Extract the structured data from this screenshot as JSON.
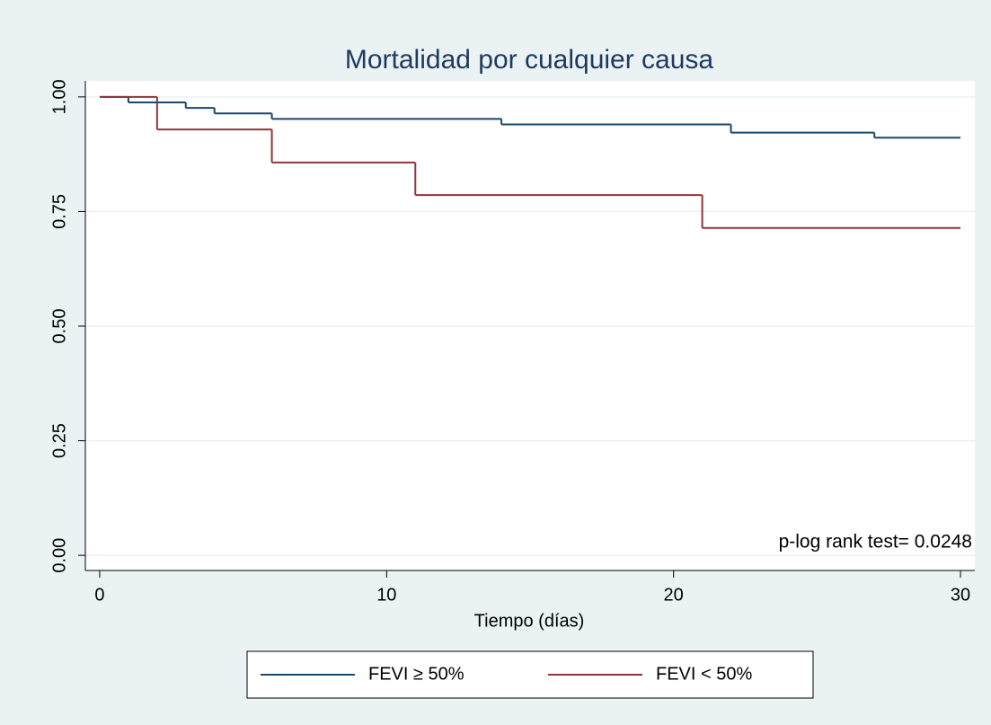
{
  "chart_data": {
    "type": "step",
    "title": "Mortalidad por cualquier causa",
    "x_label": "Tiempo (días)",
    "annotation": "p-log rank test= 0.0248",
    "series": [
      {
        "name": "FEVI ≥ 50%",
        "color": "#1a476f",
        "x": [
          0,
          1,
          3,
          4,
          6,
          14,
          22,
          27,
          30
        ],
        "values": [
          1,
          0.988,
          0.976,
          0.964,
          0.952,
          0.94,
          0.922,
          0.911,
          0.911
        ]
      },
      {
        "name": "FEVI < 50%",
        "color": "#90353b",
        "x": [
          0,
          2,
          6,
          11,
          21,
          30
        ],
        "values": [
          1,
          0.929,
          0.857,
          0.786,
          0.714,
          0.714
        ]
      }
    ],
    "xlim": [
      -0.5,
      30.5
    ],
    "xticks": [
      0,
      10,
      20,
      30
    ],
    "ylim": [
      -0.033,
      1.035
    ],
    "yticks": [
      {
        "value": 0,
        "label": "0.00"
      },
      {
        "value": 0.25,
        "label": "0.25"
      },
      {
        "value": 0.5,
        "label": "0.50"
      },
      {
        "value": 0.75,
        "label": "0.75"
      },
      {
        "value": 1,
        "label": "1.00"
      }
    ],
    "grid": true,
    "legend": "bottom"
  }
}
